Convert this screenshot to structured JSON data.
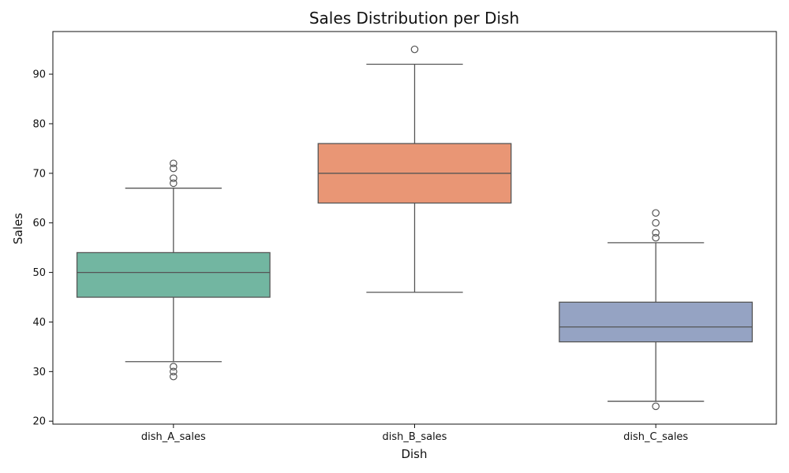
{
  "chart_data": {
    "type": "box",
    "title": "Sales Distribution per Dish",
    "xlabel": "Dish",
    "ylabel": "Sales",
    "ylim": [
      19.4,
      98.6
    ],
    "yticks": [
      20,
      30,
      40,
      50,
      60,
      70,
      80,
      90
    ],
    "grid": false,
    "series": [
      {
        "name": "dish_A_sales",
        "color": "#72b6a1",
        "whisker_low": 32,
        "q1": 45,
        "median": 50,
        "q3": 54,
        "whisker_high": 67,
        "outliers": [
          29,
          30,
          31,
          68,
          69,
          71,
          72
        ]
      },
      {
        "name": "dish_B_sales",
        "color": "#e99675",
        "whisker_low": 46,
        "q1": 64,
        "median": 70,
        "q3": 76,
        "whisker_high": 92,
        "outliers": [
          95
        ]
      },
      {
        "name": "dish_C_sales",
        "color": "#95a3c3",
        "whisker_low": 24,
        "q1": 36,
        "median": 39,
        "q3": 44,
        "whisker_high": 56,
        "outliers": [
          23,
          57,
          58,
          60,
          62
        ]
      }
    ]
  }
}
